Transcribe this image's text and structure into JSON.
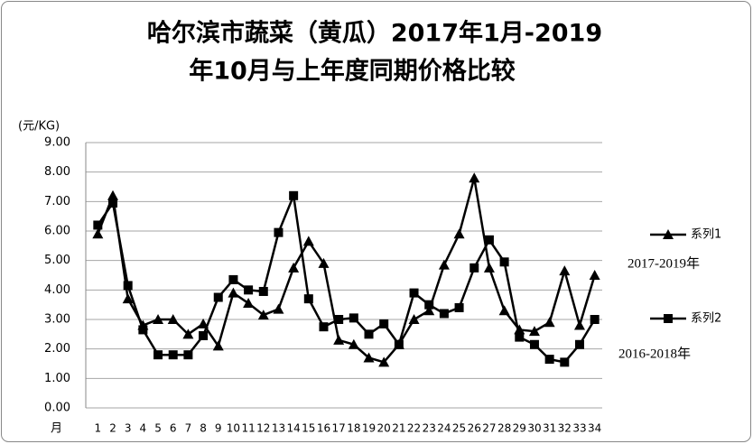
{
  "chart_data": {
    "type": "line",
    "title": [
      "哈尔滨市蔬菜（黄瓜）2017年1月-2019",
      "年10月与上年度同期价格比较"
    ],
    "y_label": "(元/KG)",
    "x_label": "月",
    "categories": [
      "1",
      "2",
      "3",
      "4",
      "5",
      "6",
      "7",
      "8",
      "9",
      "10",
      "11",
      "12",
      "13",
      "14",
      "15",
      "16",
      "17",
      "18",
      "19",
      "20",
      "21",
      "22",
      "23",
      "24",
      "25",
      "26",
      "27",
      "28",
      "29",
      "30",
      "31",
      "32",
      "33",
      "34"
    ],
    "series": [
      {
        "name": "系列1",
        "note": "2017-2019年",
        "color": "#000000",
        "marker": "triangle",
        "values": [
          5.9,
          7.2,
          3.7,
          2.8,
          3.0,
          3.0,
          2.5,
          2.85,
          2.1,
          3.9,
          3.55,
          3.15,
          3.35,
          4.75,
          5.65,
          4.9,
          2.3,
          2.15,
          1.7,
          1.55,
          2.15,
          3.0,
          3.3,
          4.85,
          5.9,
          7.8,
          4.75,
          3.3,
          2.65,
          2.6,
          2.9,
          4.65,
          2.8,
          4.5
        ]
      },
      {
        "name": "系列2",
        "note": "2016-2018年",
        "color": "#000000",
        "marker": "square",
        "values": [
          6.2,
          6.95,
          4.15,
          2.65,
          1.8,
          1.8,
          1.8,
          2.45,
          3.75,
          4.35,
          4.0,
          3.95,
          5.95,
          7.2,
          3.7,
          2.75,
          3.0,
          3.05,
          2.5,
          2.85,
          2.15,
          3.9,
          3.5,
          3.2,
          3.4,
          4.75,
          5.7,
          4.95,
          2.4,
          2.15,
          1.65,
          1.55,
          2.15,
          3.0
        ]
      }
    ],
    "ylim": [
      0,
      9
    ],
    "yticks": [
      {
        "value": 0,
        "label": "0.00"
      },
      {
        "value": 1,
        "label": "1.00"
      },
      {
        "value": 2,
        "label": "2.00"
      },
      {
        "value": 3,
        "label": "3.00"
      },
      {
        "value": 4,
        "label": "4.00"
      },
      {
        "value": 5,
        "label": "5.00"
      },
      {
        "value": 6,
        "label": "6.00"
      },
      {
        "value": 7,
        "label": "7.00"
      },
      {
        "value": 8,
        "label": "8.00"
      },
      {
        "value": 9,
        "label": "9.00"
      }
    ],
    "grid": true
  }
}
